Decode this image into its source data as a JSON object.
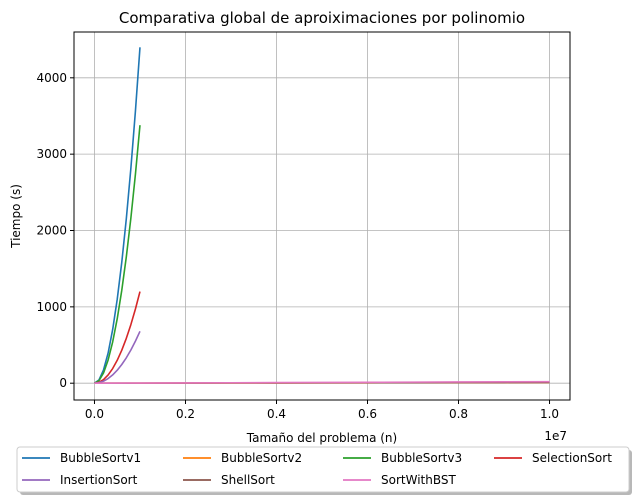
{
  "chart_data": {
    "type": "line",
    "title": "Comparativa global de aproiximaciones por polinomio",
    "xlabel": "Tamaño del problema (n)",
    "ylabel": "Tiempo (s)",
    "x_offset_label": "1e7",
    "x_scale": 10000000,
    "xlim": [
      -450000,
      10450000
    ],
    "ylim": [
      -220,
      4600
    ],
    "xticks": [
      0,
      2000000,
      4000000,
      6000000,
      8000000,
      10000000
    ],
    "xtick_labels": [
      "0.0",
      "0.2",
      "0.4",
      "0.6",
      "0.8",
      "1.0"
    ],
    "yticks": [
      0,
      1000,
      2000,
      3000,
      4000
    ],
    "ytick_labels": [
      "0",
      "1000",
      "2000",
      "3000",
      "4000"
    ],
    "grid": true,
    "legend": {
      "placement": "bottom",
      "columns": 4,
      "shadow": true
    },
    "series": [
      {
        "name": "BubbleSortv1",
        "color": "#1f77b4",
        "x": [
          0,
          100000,
          200000,
          300000,
          400000,
          500000,
          600000,
          700000,
          800000,
          900000,
          1000000
        ],
        "y": [
          0,
          44,
          176,
          396,
          704,
          1100,
          1584,
          2156,
          2816,
          3564,
          4400
        ]
      },
      {
        "name": "BubbleSortv2",
        "color": "#ff7f0e",
        "x": [
          0,
          1000000,
          2000000,
          3000000,
          4000000,
          5000000,
          6000000,
          7000000,
          8000000,
          9000000,
          10000000
        ],
        "y": [
          0,
          0.5,
          1.5,
          2.5,
          3.5,
          4.5,
          5.5,
          6.5,
          7.5,
          8.5,
          10
        ]
      },
      {
        "name": "BubbleSortv3",
        "color": "#2ca02c",
        "x": [
          0,
          100000,
          200000,
          300000,
          400000,
          500000,
          600000,
          700000,
          800000,
          900000,
          1000000
        ],
        "y": [
          0,
          34,
          135,
          304,
          541,
          845,
          1217,
          1656,
          2163,
          2738,
          3380
        ]
      },
      {
        "name": "SelectionSort",
        "color": "#d62728",
        "x": [
          0,
          100000,
          200000,
          300000,
          400000,
          500000,
          600000,
          700000,
          800000,
          900000,
          1000000
        ],
        "y": [
          0,
          12,
          48,
          108,
          192,
          300,
          432,
          588,
          768,
          972,
          1200
        ]
      },
      {
        "name": "InsertionSort",
        "color": "#9467bd",
        "x": [
          0,
          100000,
          200000,
          300000,
          400000,
          500000,
          600000,
          700000,
          800000,
          900000,
          1000000
        ],
        "y": [
          0,
          7,
          27,
          61,
          109,
          170,
          245,
          333,
          435,
          551,
          680
        ]
      },
      {
        "name": "ShellSort",
        "color": "#8c564b",
        "x": [
          0,
          1000000,
          2000000,
          3000000,
          4000000,
          5000000,
          6000000,
          7000000,
          8000000,
          9000000,
          10000000
        ],
        "y": [
          0,
          1,
          2,
          3,
          4,
          5,
          6,
          7,
          8,
          9,
          10
        ]
      },
      {
        "name": "SortWithBST",
        "color": "#e377c2",
        "x": [
          0,
          1000000,
          2000000,
          3000000,
          4000000,
          5000000,
          6000000,
          7000000,
          8000000,
          9000000,
          10000000
        ],
        "y": [
          0,
          2,
          4,
          6,
          8,
          10,
          12,
          14,
          16,
          18,
          20
        ]
      }
    ]
  }
}
